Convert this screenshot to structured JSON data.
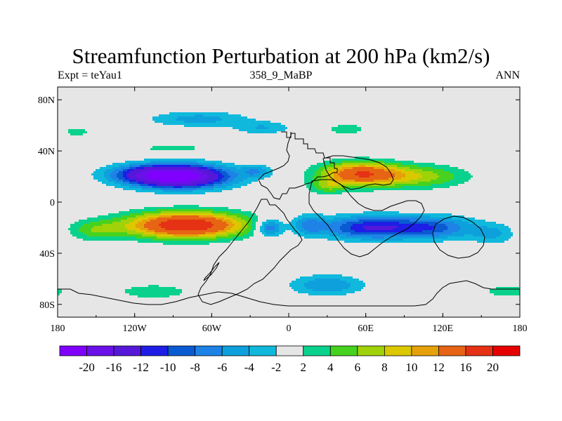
{
  "chart_data": {
    "type": "heatmap",
    "title": "Streamfunction Perturbation at 200 hPa (km2/s)",
    "subtitle_left": "Expt = teYau1",
    "subtitle_center": "358_9_MaBP",
    "subtitle_right": "ANN",
    "x_ticks": [
      "180",
      "120W",
      "60W",
      "0",
      "60E",
      "120E",
      "180"
    ],
    "x_tick_values": [
      -180,
      -120,
      -60,
      0,
      60,
      120,
      180
    ],
    "y_ticks": [
      "80N",
      "40N",
      "0",
      "40S",
      "80S"
    ],
    "y_tick_values": [
      80,
      40,
      0,
      -40,
      -80
    ],
    "xlim": [
      -180,
      180
    ],
    "ylim": [
      -90,
      90
    ],
    "colorbar_labels": [
      "-20",
      "-16",
      "-12",
      "-10",
      "-8",
      "-6",
      "-4",
      "-2",
      "2",
      "4",
      "6",
      "8",
      "10",
      "12",
      "16",
      "20"
    ],
    "levels": [
      -20,
      -16,
      -12,
      -10,
      -8,
      -6,
      -4,
      -2,
      2,
      4,
      6,
      8,
      10,
      12,
      16,
      20
    ],
    "colors": [
      "#7f00ff",
      "#6a10e8",
      "#5518d8",
      "#1e1ee6",
      "#0a5ad2",
      "#1e82e6",
      "#0ea0dc",
      "#10b9dc",
      "#e6e6e6",
      "#0ad28c",
      "#46d21e",
      "#a0d20a",
      "#dcc800",
      "#e6a00a",
      "#e66414",
      "#e63214",
      "#e60000"
    ],
    "features": [
      {
        "kind": "low",
        "lon": -85,
        "lat": 20,
        "peak": -22,
        "lon_width": 38,
        "lat_width": 9
      },
      {
        "kind": "low",
        "lon": -110,
        "lat": 22,
        "peak": -7,
        "lon_width": 32,
        "lat_width": 7
      },
      {
        "kind": "low",
        "lon": -25,
        "lat": 24,
        "peak": -5,
        "lon_width": 12,
        "lat_width": 5
      },
      {
        "kind": "high",
        "lon": -80,
        "lat": -18,
        "peak": 20,
        "lon_width": 45,
        "lat_width": 10
      },
      {
        "kind": "high",
        "lon": -150,
        "lat": -22,
        "peak": 5,
        "lon_width": 22,
        "lat_width": 8
      },
      {
        "kind": "high",
        "lon": 55,
        "lat": 22,
        "peak": 15,
        "lon_width": 30,
        "lat_width": 9
      },
      {
        "kind": "high",
        "lon": 100,
        "lat": 20,
        "peak": 7,
        "lon_width": 38,
        "lat_width": 9
      },
      {
        "kind": "high",
        "lon": 30,
        "lat": 12,
        "peak": 5,
        "lon_width": 14,
        "lat_width": 6
      },
      {
        "kind": "low",
        "lon": 60,
        "lat": -20,
        "peak": -11,
        "lon_width": 35,
        "lat_width": 9
      },
      {
        "kind": "low",
        "lon": 110,
        "lat": -20,
        "peak": -9,
        "lon_width": 35,
        "lat_width": 9
      },
      {
        "kind": "low",
        "lon": -15,
        "lat": -20,
        "peak": -9,
        "lon_width": 10,
        "lat_width": 7
      },
      {
        "kind": "low",
        "lon": 15,
        "lat": -18,
        "peak": -6,
        "lon_width": 13,
        "lat_width": 8
      },
      {
        "kind": "low",
        "lon": 160,
        "lat": -25,
        "peak": -4,
        "lon_width": 18,
        "lat_width": 8
      },
      {
        "kind": "low",
        "lon": -70,
        "lat": 65,
        "peak": -5,
        "lon_width": 38,
        "lat_width": 6
      },
      {
        "kind": "low",
        "lon": -20,
        "lat": 58,
        "peak": -4,
        "lon_width": 22,
        "lat_width": 5
      },
      {
        "kind": "high",
        "lon": 45,
        "lat": 57,
        "peak": 4,
        "lon_width": 14,
        "lat_width": 4
      },
      {
        "kind": "high",
        "lon": -90,
        "lat": 42,
        "peak": 3.5,
        "lon_width": 25,
        "lat_width": 3
      },
      {
        "kind": "low",
        "lon": 30,
        "lat": -65,
        "peak": -6,
        "lon_width": 28,
        "lat_width": 8
      },
      {
        "kind": "high",
        "lon": -105,
        "lat": -70,
        "peak": 3.5,
        "lon_width": 30,
        "lat_width": 6
      },
      {
        "kind": "high",
        "lon": -165,
        "lat": 55,
        "peak": 3,
        "lon_width": 12,
        "lat_width": 4
      },
      {
        "kind": "high",
        "lon": 170,
        "lat": -70,
        "peak": 3.5,
        "lon_width": 18,
        "lat_width": 5
      }
    ]
  }
}
